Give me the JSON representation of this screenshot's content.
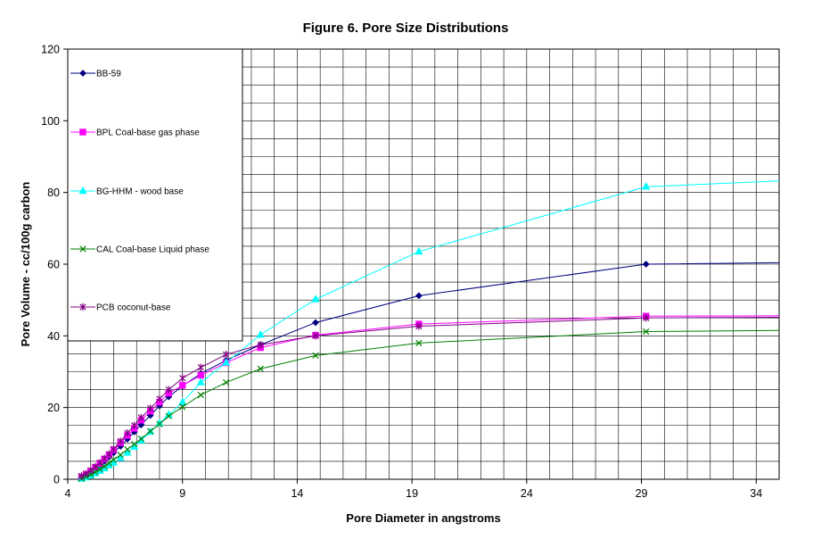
{
  "chart_data": {
    "type": "line",
    "title": "Figure 6. Pore Size Distributions",
    "xlabel": "Pore Diameter in angstroms",
    "ylabel": "Pore Volume - cc/100g carbon",
    "xlim": [
      4,
      35
    ],
    "ylim": [
      0,
      120
    ],
    "x_ticks": [
      "4",
      "9",
      "14",
      "19",
      "24",
      "29",
      "34"
    ],
    "y_ticks": [
      "0",
      "20",
      "40",
      "60",
      "80",
      "100",
      "120"
    ],
    "grid": true,
    "legend_position": "top-left",
    "series": [
      {
        "name": "BB-59",
        "color": "#000080",
        "marker": "diamond",
        "points": [
          [
            4.6,
            0.4
          ],
          [
            4.8,
            1.0
          ],
          [
            5.0,
            1.8
          ],
          [
            5.2,
            2.8
          ],
          [
            5.4,
            3.8
          ],
          [
            5.6,
            5.0
          ],
          [
            5.8,
            6.2
          ],
          [
            6.0,
            7.4
          ],
          [
            6.3,
            9.2
          ],
          [
            6.6,
            11.2
          ],
          [
            6.9,
            13.2
          ],
          [
            7.2,
            15.2
          ],
          [
            7.6,
            17.8
          ],
          [
            8.0,
            20.5
          ],
          [
            8.4,
            23.0
          ],
          [
            9.0,
            26.0
          ],
          [
            9.8,
            29.5
          ],
          [
            10.9,
            33.2
          ],
          [
            12.4,
            37.5
          ],
          [
            14.8,
            43.7
          ],
          [
            19.3,
            51.2
          ],
          [
            29.2,
            60.0
          ],
          [
            35,
            60.4
          ]
        ],
        "marked_x": [
          4.6,
          4.8,
          5.0,
          5.2,
          5.4,
          5.6,
          5.8,
          6.0,
          6.3,
          6.6,
          6.9,
          7.2,
          7.6,
          8.0,
          8.4,
          9.0,
          9.8,
          10.9,
          12.4,
          14.8,
          19.3,
          29.2
        ]
      },
      {
        "name": "BPL Coal-base gas phase",
        "color": "#FF00FF",
        "marker": "square",
        "points": [
          [
            4.6,
            0.6
          ],
          [
            4.8,
            1.3
          ],
          [
            5.0,
            2.2
          ],
          [
            5.2,
            3.3
          ],
          [
            5.4,
            4.4
          ],
          [
            5.6,
            5.6
          ],
          [
            5.8,
            6.8
          ],
          [
            6.0,
            8.2
          ],
          [
            6.3,
            10.2
          ],
          [
            6.6,
            12.2
          ],
          [
            6.9,
            14.2
          ],
          [
            7.2,
            16.5
          ],
          [
            7.6,
            19.0
          ],
          [
            8.0,
            21.5
          ],
          [
            8.4,
            24.0
          ],
          [
            9.0,
            26.2
          ],
          [
            9.8,
            29.0
          ],
          [
            10.9,
            32.5
          ],
          [
            12.4,
            36.7
          ],
          [
            14.8,
            40.2
          ],
          [
            19.3,
            43.3
          ],
          [
            29.2,
            45.5
          ],
          [
            35,
            45.6
          ]
        ],
        "marked_x": [
          4.6,
          4.8,
          5.0,
          5.2,
          5.4,
          5.6,
          5.8,
          6.0,
          6.3,
          6.6,
          6.9,
          7.2,
          7.6,
          8.0,
          8.4,
          9.0,
          9.8,
          10.9,
          12.4,
          14.8,
          19.3,
          29.2
        ]
      },
      {
        "name": "BG-HHM - wood base",
        "color": "#00FFFF",
        "marker": "triangle",
        "points": [
          [
            4.6,
            0.1
          ],
          [
            4.8,
            0.5
          ],
          [
            5.0,
            1.0
          ],
          [
            5.2,
            1.6
          ],
          [
            5.4,
            2.3
          ],
          [
            5.6,
            3.0
          ],
          [
            5.8,
            3.8
          ],
          [
            6.0,
            4.6
          ],
          [
            6.3,
            5.9
          ],
          [
            6.6,
            7.4
          ],
          [
            6.9,
            9.0
          ],
          [
            7.2,
            10.8
          ],
          [
            7.6,
            13.2
          ],
          [
            8.0,
            15.6
          ],
          [
            8.4,
            18.0
          ],
          [
            9.0,
            21.5
          ],
          [
            9.8,
            27.0
          ],
          [
            10.9,
            32.5
          ],
          [
            12.4,
            40.3
          ],
          [
            14.8,
            50.2
          ],
          [
            19.3,
            63.5
          ],
          [
            29.2,
            81.6
          ],
          [
            35,
            83.2
          ]
        ],
        "marked_x": [
          4.6,
          4.8,
          5.0,
          5.2,
          5.4,
          5.6,
          5.8,
          6.0,
          6.3,
          6.6,
          6.9,
          7.2,
          7.6,
          8.0,
          8.4,
          9.0,
          9.8,
          10.9,
          12.4,
          14.8,
          19.3,
          29.2
        ]
      },
      {
        "name": "CAL Coal-base Liquid phase",
        "color": "#008000",
        "marker": "x",
        "points": [
          [
            4.6,
            0.2
          ],
          [
            4.8,
            0.7
          ],
          [
            5.0,
            1.3
          ],
          [
            5.2,
            2.0
          ],
          [
            5.4,
            2.8
          ],
          [
            5.6,
            3.6
          ],
          [
            5.8,
            4.5
          ],
          [
            6.0,
            5.4
          ],
          [
            6.3,
            6.8
          ],
          [
            6.6,
            8.3
          ],
          [
            6.9,
            9.8
          ],
          [
            7.2,
            11.3
          ],
          [
            7.6,
            13.4
          ],
          [
            8.0,
            15.4
          ],
          [
            8.4,
            17.6
          ],
          [
            9.0,
            20.2
          ],
          [
            9.8,
            23.5
          ],
          [
            10.9,
            27.0
          ],
          [
            12.4,
            30.8
          ],
          [
            14.8,
            34.5
          ],
          [
            19.3,
            38.0
          ],
          [
            29.2,
            41.2
          ],
          [
            35,
            41.5
          ]
        ],
        "marked_x": [
          4.6,
          4.8,
          5.0,
          5.2,
          5.4,
          5.6,
          5.8,
          6.0,
          6.3,
          6.6,
          6.9,
          7.2,
          7.6,
          8.0,
          8.4,
          9.0,
          9.8,
          10.9,
          12.4,
          14.8,
          19.3,
          29.2
        ]
      },
      {
        "name": "PCB coconut-base",
        "color": "#800080",
        "marker": "star",
        "points": [
          [
            4.6,
            0.9
          ],
          [
            4.8,
            1.6
          ],
          [
            5.0,
            2.5
          ],
          [
            5.2,
            3.5
          ],
          [
            5.4,
            4.6
          ],
          [
            5.6,
            5.8
          ],
          [
            5.8,
            7.0
          ],
          [
            6.0,
            8.4
          ],
          [
            6.3,
            10.6
          ],
          [
            6.6,
            12.9
          ],
          [
            6.9,
            15.0
          ],
          [
            7.2,
            17.2
          ],
          [
            7.6,
            19.8
          ],
          [
            8.0,
            22.4
          ],
          [
            8.4,
            25.0
          ],
          [
            9.0,
            28.2
          ],
          [
            9.8,
            31.2
          ],
          [
            10.9,
            34.8
          ],
          [
            12.4,
            37.5
          ],
          [
            14.8,
            40.0
          ],
          [
            19.3,
            42.7
          ],
          [
            29.2,
            45.0
          ],
          [
            35,
            45.2
          ]
        ],
        "marked_x": [
          4.6,
          4.8,
          5.0,
          5.2,
          5.4,
          5.6,
          5.8,
          6.0,
          6.3,
          6.6,
          6.9,
          7.2,
          7.6,
          8.0,
          8.4,
          9.0,
          9.8,
          10.9,
          12.4,
          14.8,
          19.3,
          29.2
        ]
      }
    ]
  }
}
